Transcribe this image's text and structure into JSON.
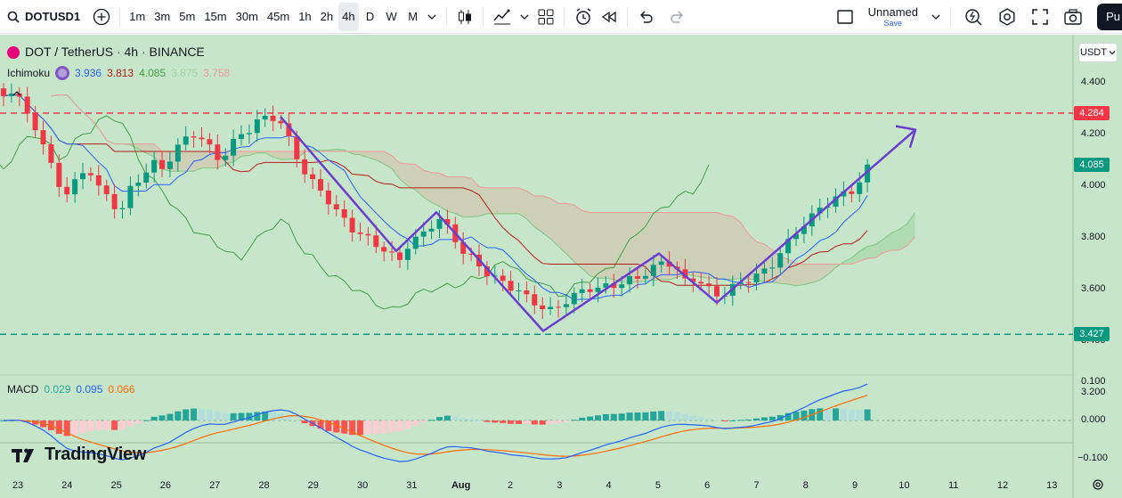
{
  "toolbar": {
    "symbol": "DOTUSD1",
    "intervals": [
      "1m",
      "3m",
      "5m",
      "15m",
      "30m",
      "45m",
      "1h",
      "2h",
      "4h",
      "D",
      "W",
      "M"
    ],
    "active_interval": "4h",
    "layout_name": "Unnamed",
    "save_label": "Save",
    "publish_label": "Pu"
  },
  "legend": {
    "title": "DOT / TetherUS · 4h · BINANCE",
    "ichimoku_label": "Ichimoku",
    "ichimoku_values": [
      "3.936",
      "3.813",
      "4.085",
      "3.875",
      "3.758"
    ],
    "ichimoku_colors": [
      "#2962ff",
      "#b71c1c",
      "#43a047",
      "#a5d6a7",
      "#ef9a9a"
    ],
    "macd_label": "MACD",
    "macd_values": [
      "0.029",
      "0.095",
      "0.066"
    ],
    "macd_colors": [
      "#26a69a",
      "#2962ff",
      "#ff6d00"
    ]
  },
  "currency_button": "USDT",
  "watermark": "TradingView",
  "price_axis": {
    "labels": [
      "4.400",
      "4.200",
      "4.000",
      "3.800",
      "3.600",
      "3.400",
      "3.200"
    ],
    "badges": [
      {
        "text": "4.284",
        "color": "#f23645"
      },
      {
        "text": "4.085",
        "color": "#089981"
      },
      {
        "text": "3.427",
        "color": "#089981"
      }
    ]
  },
  "macd_axis": {
    "labels": [
      "0.100",
      "0.000",
      "−0.100"
    ]
  },
  "time_axis": {
    "labels": [
      "23",
      "24",
      "25",
      "26",
      "27",
      "28",
      "29",
      "30",
      "31",
      "Aug",
      "2",
      "3",
      "4",
      "5",
      "6",
      "7",
      "8",
      "9",
      "10",
      "11",
      "12",
      "13"
    ]
  },
  "chart_data": {
    "type": "candlestick",
    "symbol": "DOT / TetherUS",
    "timeframe": "4h",
    "exchange": "BINANCE",
    "price_range": [
      3.1,
      4.55
    ],
    "horizontal_lines": [
      {
        "price": 4.284,
        "style": "dashed",
        "color": "#f23645"
      },
      {
        "price": 3.427,
        "style": "dashed",
        "color": "#089981"
      }
    ],
    "close_path_anchors": [
      4.35,
      4.38,
      4.28,
      4.22,
      4.12,
      4.0,
      3.96,
      4.02,
      4.06,
      3.98,
      3.94,
      3.9,
      4.0,
      4.05,
      4.1,
      4.08,
      4.15,
      4.2,
      4.22,
      4.18,
      4.12,
      4.14,
      4.2,
      4.22,
      4.25,
      4.27,
      4.23,
      4.15,
      4.05,
      4.0,
      3.96,
      3.9,
      3.86,
      3.82,
      3.8,
      3.78,
      3.75,
      3.72,
      3.79,
      3.82,
      3.86,
      3.89,
      3.83,
      3.76,
      3.72,
      3.68,
      3.64,
      3.62,
      3.59,
      3.56,
      3.53,
      3.5,
      3.52,
      3.55,
      3.58,
      3.6,
      3.6,
      3.62,
      3.63,
      3.65,
      3.67,
      3.7,
      3.73,
      3.7,
      3.64,
      3.66,
      3.61,
      3.58,
      3.6,
      3.62,
      3.64,
      3.65,
      3.68,
      3.74,
      3.79,
      3.84,
      3.88,
      3.92,
      3.95,
      3.97,
      4.0,
      4.085
    ],
    "macd": {
      "macd": 0.095,
      "signal": 0.066,
      "histogram": 0.029,
      "range": [
        -0.14,
        0.12
      ]
    },
    "drawn_pattern": "W pattern with upward arrow"
  }
}
